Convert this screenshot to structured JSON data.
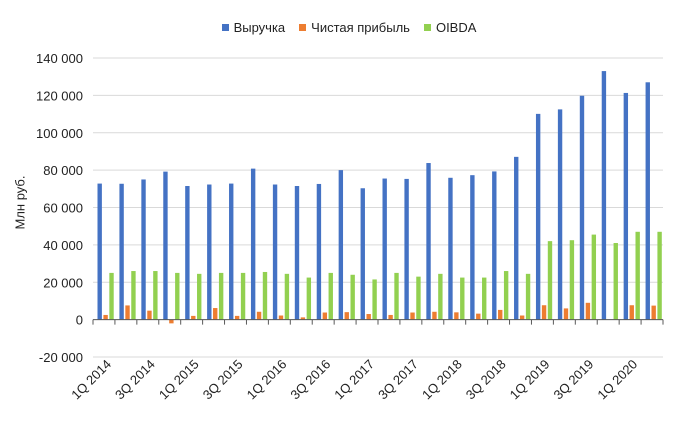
{
  "chart_data": {
    "type": "bar",
    "title": "",
    "xlabel": "",
    "ylabel": "Млн руб.",
    "ylim": [
      -20000,
      140000
    ],
    "y_ticks": [
      -20000,
      0,
      20000,
      40000,
      60000,
      80000,
      100000,
      120000,
      140000
    ],
    "y_tick_labels": [
      "-20 000",
      "0",
      "20 000",
      "40 000",
      "60 000",
      "80 000",
      "100 000",
      "120 000",
      "140 000"
    ],
    "grid": true,
    "legend": "top-center",
    "categories": [
      "1Q 2014",
      "2Q 2014",
      "3Q 2014",
      "4Q 2014",
      "1Q 2015",
      "2Q 2015",
      "3Q 2015",
      "4Q 2015",
      "1Q 2016",
      "2Q 2016",
      "3Q 2016",
      "4Q 2016",
      "1Q 2017",
      "2Q 2017",
      "3Q 2017",
      "4Q 2017",
      "1Q 2018",
      "2Q 2018",
      "3Q 2018",
      "4Q 2018",
      "1Q 2019",
      "2Q 2019",
      "3Q 2019",
      "4Q 2019",
      "1Q 2020",
      "2Q 2020"
    ],
    "x_tick_labels": [
      "1Q 2014",
      "3Q 2014",
      "1Q 2015",
      "3Q 2015",
      "1Q 2016",
      "3Q 2016",
      "1Q 2017",
      "3Q 2017",
      "1Q 2018",
      "3Q 2018",
      "1Q 2019",
      "3Q 2019",
      "1Q 2020"
    ],
    "series": [
      {
        "name": "Выручка",
        "color": "#4472C4",
        "values": [
          72800,
          72700,
          75000,
          79200,
          71500,
          72300,
          72800,
          80800,
          72300,
          71500,
          72600,
          80000,
          70300,
          75500,
          75300,
          83800,
          75900,
          77300,
          79300,
          87100,
          110100,
          112500,
          119800,
          133000,
          121300,
          127000
        ]
      },
      {
        "name": "Чистая прибыль",
        "color": "#ED7D31",
        "values": [
          2500,
          7600,
          4800,
          -2000,
          2000,
          6200,
          2000,
          4200,
          2200,
          1200,
          3800,
          4000,
          3000,
          2500,
          3800,
          4200,
          3900,
          3200,
          5200,
          2200,
          7700,
          6000,
          9000,
          0,
          7700,
          7500
        ]
      },
      {
        "name": "OIBDA",
        "color": "#92D050",
        "values": [
          25000,
          26000,
          26000,
          25000,
          24500,
          25000,
          25000,
          25500,
          24500,
          22500,
          25000,
          24000,
          21500,
          25000,
          23000,
          24500,
          22500,
          22500,
          26000,
          24500,
          42000,
          42500,
          45500,
          41000,
          47000,
          47000
        ]
      }
    ]
  }
}
